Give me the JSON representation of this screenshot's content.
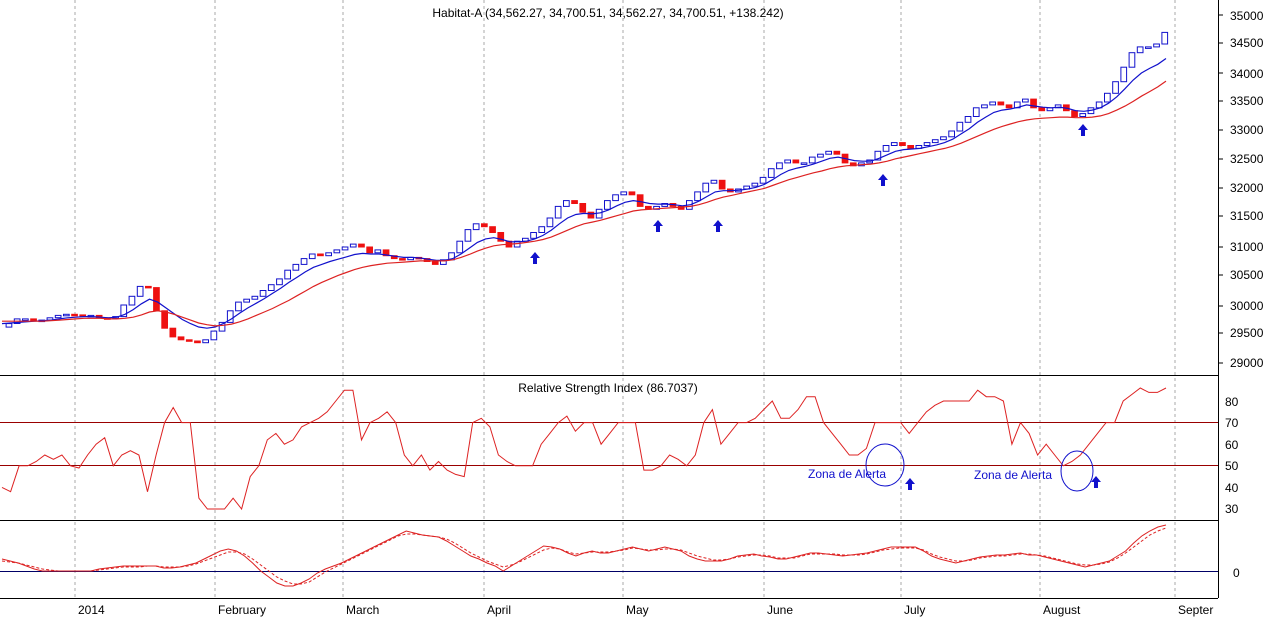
{
  "chart_data": [
    {
      "type": "candlestick",
      "title": "Habitat-A (34,562.27, 34,700.51, 34,562.27, 34,700.51, +138.242)",
      "ylim": [
        28800,
        35100
      ],
      "yticks": [
        "35000",
        "34500",
        "34000",
        "33500",
        "33000",
        "32500",
        "32000",
        "31500",
        "31000",
        "30500",
        "30000",
        "29500",
        "29000"
      ],
      "grid": "vertical dotted",
      "series": [
        {
          "name": "",
          "color": "#ee1111",
          "values": [
            29620,
            29680,
            29760,
            29760,
            29740,
            29740,
            29780,
            29820,
            29840,
            29830,
            29820,
            29820,
            29780,
            29770,
            29800,
            30000,
            30150,
            30320,
            30300,
            29900,
            29600,
            29450,
            29400,
            29380,
            29350,
            29400,
            29550,
            29700,
            29900,
            30050,
            30100,
            30150,
            30250,
            30350,
            30450,
            30600,
            30700,
            30800,
            30880,
            30850,
            30900,
            30950,
            31000,
            31050,
            31000,
            30900,
            30950,
            30850,
            30800,
            30780,
            30820,
            30800,
            30750,
            30700,
            30780,
            30900,
            31100,
            31300,
            31400,
            31350,
            31250,
            31100,
            31000,
            31100,
            31150,
            31250,
            31350,
            31500,
            31700,
            31800,
            31750,
            31600,
            31500,
            31650,
            31800,
            31900,
            31950,
            31900,
            31700,
            31650,
            31700,
            31750,
            31700,
            31650,
            31800,
            31950,
            32100,
            32150,
            32000,
            31950,
            32000,
            32050,
            32100,
            32200,
            32350,
            32450,
            32500,
            32450,
            32450,
            32550,
            32600,
            32650,
            32600,
            32450,
            32400,
            32450,
            32500,
            32650,
            32750,
            32800,
            32750,
            32700,
            32750,
            32800,
            32850,
            32900,
            33000,
            33150,
            33250,
            33400,
            33450,
            33500,
            33450,
            33400,
            33500,
            33550,
            33400,
            33350,
            33400,
            33450,
            33350,
            33250,
            33300,
            33400,
            33500,
            33650,
            33850,
            34100,
            34350,
            34450,
            34450,
            34500,
            34700
          ]
        },
        {
          "name": "",
          "color": "#1111cc",
          "values": [
            29680,
            29690,
            29700,
            29710,
            29720,
            29730,
            29740,
            29760,
            29780,
            29790,
            29800,
            29800,
            29790,
            29780,
            29790,
            29840,
            29920,
            30020,
            30100,
            30050,
            29950,
            29850,
            29750,
            29680,
            29620,
            29600,
            29620,
            29680,
            29760,
            29860,
            29950,
            30030,
            30110,
            30200,
            30290,
            30390,
            30480,
            30570,
            30650,
            30700,
            30750,
            30790,
            30830,
            30870,
            30890,
            30880,
            30880,
            30860,
            30840,
            30820,
            30820,
            30810,
            30790,
            30770,
            30770,
            30800,
            30880,
            30980,
            31080,
            31140,
            31160,
            31130,
            31090,
            31090,
            31100,
            31140,
            31200,
            31290,
            31400,
            31500,
            31560,
            31580,
            31570,
            31590,
            31640,
            31710,
            31770,
            31800,
            31780,
            31750,
            31740,
            31740,
            31730,
            31710,
            31730,
            31790,
            31870,
            31950,
            31970,
            31970,
            31980,
            32000,
            32030,
            32080,
            32160,
            32250,
            32320,
            32360,
            32390,
            32430,
            32480,
            32530,
            32550,
            32520,
            32490,
            32480,
            32480,
            32530,
            32590,
            32650,
            32680,
            32690,
            32700,
            32730,
            32760,
            32800,
            32860,
            32950,
            33040,
            33150,
            33240,
            33320,
            33360,
            33380,
            33410,
            33450,
            33430,
            33410,
            33400,
            33410,
            33390,
            33350,
            33340,
            33360,
            33400,
            33480,
            33590,
            33730,
            33880,
            34000,
            34080,
            34150,
            34250
          ]
        },
        {
          "name": "",
          "color": "#dd2222",
          "values": [
            29720,
            29720,
            29720,
            29720,
            29720,
            29720,
            29730,
            29740,
            29750,
            29760,
            29770,
            29770,
            29770,
            29760,
            29760,
            29770,
            29790,
            29830,
            29880,
            29900,
            29880,
            29840,
            29790,
            29740,
            29690,
            29660,
            29640,
            29650,
            29670,
            29710,
            29760,
            29820,
            29880,
            29940,
            30010,
            30080,
            30160,
            30240,
            30320,
            30390,
            30450,
            30510,
            30560,
            30610,
            30650,
            30680,
            30700,
            30720,
            30730,
            30740,
            30750,
            30760,
            30760,
            30760,
            30760,
            30780,
            30820,
            30870,
            30930,
            30980,
            31020,
            31040,
            31050,
            31060,
            31080,
            31100,
            31130,
            31170,
            31230,
            31290,
            31350,
            31400,
            31430,
            31460,
            31500,
            31540,
            31580,
            31620,
            31640,
            31650,
            31660,
            31670,
            31680,
            31690,
            31700,
            31730,
            31770,
            31820,
            31860,
            31890,
            31920,
            31950,
            31980,
            32010,
            32060,
            32110,
            32160,
            32200,
            32240,
            32280,
            32310,
            32350,
            32380,
            32400,
            32410,
            32420,
            32430,
            32450,
            32480,
            32520,
            32550,
            32580,
            32610,
            32640,
            32670,
            32700,
            32740,
            32790,
            32850,
            32910,
            32970,
            33030,
            33080,
            33120,
            33160,
            33190,
            33210,
            33220,
            33230,
            33240,
            33240,
            33230,
            33230,
            33240,
            33260,
            33300,
            33360,
            33430,
            33510,
            33600,
            33680,
            33760,
            33860
          ]
        }
      ],
      "signals": [
        {
          "x": "Apr 29",
          "type": "up-arrow"
        },
        {
          "x": "May 8",
          "type": "up-arrow"
        },
        {
          "x": "May 19",
          "type": "up-arrow"
        },
        {
          "x": "Jun 26",
          "type": "up-arrow"
        },
        {
          "x": "Aug 12",
          "type": "up-arrow"
        }
      ]
    },
    {
      "type": "line",
      "title": "Relative Strength Index (86.7037)",
      "ylim": [
        20,
        90
      ],
      "yticks": [
        "80",
        "70",
        "60",
        "50",
        "40",
        "30"
      ],
      "hlines": [
        70,
        50
      ],
      "series": [
        {
          "name": "",
          "color": "#dd2222",
          "values": [
            40,
            38,
            50,
            50,
            52,
            55,
            53,
            55,
            50,
            49,
            55,
            60,
            63,
            50,
            55,
            57,
            55,
            38,
            55,
            70,
            77,
            70,
            70,
            35,
            30,
            30,
            30,
            35,
            30,
            45,
            50,
            62,
            65,
            60,
            62,
            68,
            70,
            72,
            75,
            80,
            85,
            85,
            62,
            70,
            72,
            75,
            70,
            55,
            50,
            55,
            48,
            52,
            48,
            46,
            45,
            70,
            72,
            68,
            55,
            52,
            50,
            50,
            50,
            60,
            65,
            70,
            73,
            66,
            70,
            70,
            60,
            65,
            70,
            70,
            70,
            48,
            48,
            50,
            55,
            53,
            50,
            55,
            70,
            76,
            60,
            65,
            70,
            70,
            72,
            76,
            80,
            72,
            72,
            76,
            82,
            82,
            70,
            65,
            60,
            55,
            55,
            58,
            70,
            70,
            70,
            70,
            65,
            70,
            75,
            78,
            80,
            80,
            80,
            80,
            85,
            82,
            82,
            80,
            60,
            70,
            65,
            55,
            60,
            55,
            50,
            52,
            55,
            60,
            65,
            70,
            70,
            80,
            83,
            86,
            84,
            84,
            86
          ]
        }
      ],
      "annotations": [
        {
          "text": "Zona de Alerta",
          "x": "Jun 26",
          "y": 50
        },
        {
          "text": "Zona de Alerta",
          "x": "Aug 12",
          "y": 50
        }
      ]
    },
    {
      "type": "line",
      "title": "",
      "yticks": [
        "0"
      ],
      "hlines": [
        0
      ],
      "series": [
        {
          "name": "",
          "color": "#dd2222",
          "style": "solid",
          "values": [
            12,
            10,
            8,
            5,
            2,
            0,
            0,
            0,
            0,
            0,
            0,
            0,
            2,
            3,
            4,
            5,
            5,
            5,
            5,
            5,
            3,
            3,
            4,
            6,
            8,
            12,
            16,
            20,
            22,
            20,
            15,
            8,
            0,
            -6,
            -12,
            -15,
            -15,
            -12,
            -8,
            -2,
            2,
            5,
            8,
            12,
            16,
            20,
            24,
            28,
            32,
            36,
            40,
            38,
            36,
            35,
            34,
            30,
            25,
            20,
            15,
            12,
            8,
            5,
            0,
            5,
            10,
            15,
            20,
            25,
            24,
            22,
            18,
            15,
            18,
            20,
            18,
            18,
            20,
            22,
            24,
            22,
            20,
            22,
            24,
            22,
            20,
            15,
            12,
            10,
            10,
            10,
            12,
            15,
            16,
            17,
            15,
            14,
            12,
            12,
            14,
            16,
            18,
            18,
            17,
            16,
            15,
            16,
            17,
            18,
            20,
            22,
            24,
            24,
            24,
            24,
            20,
            15,
            12,
            10,
            8,
            10,
            12,
            14,
            15,
            16,
            16,
            17,
            18,
            16,
            16,
            14,
            12,
            10,
            8,
            6,
            4,
            6,
            8,
            10,
            15,
            20,
            28,
            35,
            40,
            44,
            46
          ]
        },
        {
          "name": "",
          "color": "#dd2222",
          "style": "dashed",
          "values": [
            10,
            9,
            8,
            6,
            4,
            2,
            1,
            0,
            0,
            0,
            0,
            0,
            1,
            2,
            3,
            4,
            4,
            4,
            5,
            5,
            4,
            4,
            4,
            5,
            7,
            10,
            13,
            16,
            19,
            19,
            17,
            12,
            6,
            0,
            -6,
            -10,
            -13,
            -13,
            -11,
            -6,
            -1,
            3,
            7,
            11,
            15,
            19,
            23,
            27,
            31,
            35,
            37,
            37,
            36,
            35,
            34,
            32,
            28,
            23,
            18,
            14,
            10,
            7,
            4,
            6,
            9,
            13,
            17,
            21,
            23,
            22,
            19,
            17,
            18,
            19,
            19,
            19,
            20,
            21,
            23,
            22,
            21,
            21,
            22,
            22,
            21,
            18,
            15,
            13,
            11,
            11,
            12,
            14,
            15,
            16,
            16,
            15,
            13,
            13,
            13,
            15,
            17,
            17,
            17,
            17,
            16,
            16,
            16,
            17,
            19,
            21,
            22,
            23,
            23,
            23,
            21,
            17,
            14,
            12,
            10,
            10,
            11,
            13,
            14,
            15,
            15,
            16,
            17,
            17,
            16,
            15,
            13,
            11,
            9,
            7,
            6,
            6,
            7,
            9,
            13,
            18,
            24,
            30,
            36,
            40,
            43
          ]
        }
      ]
    }
  ],
  "x_axis": {
    "labels": [
      "2014",
      "February",
      "March",
      "April",
      "May",
      "June",
      "July",
      "August",
      "Septer"
    ]
  }
}
